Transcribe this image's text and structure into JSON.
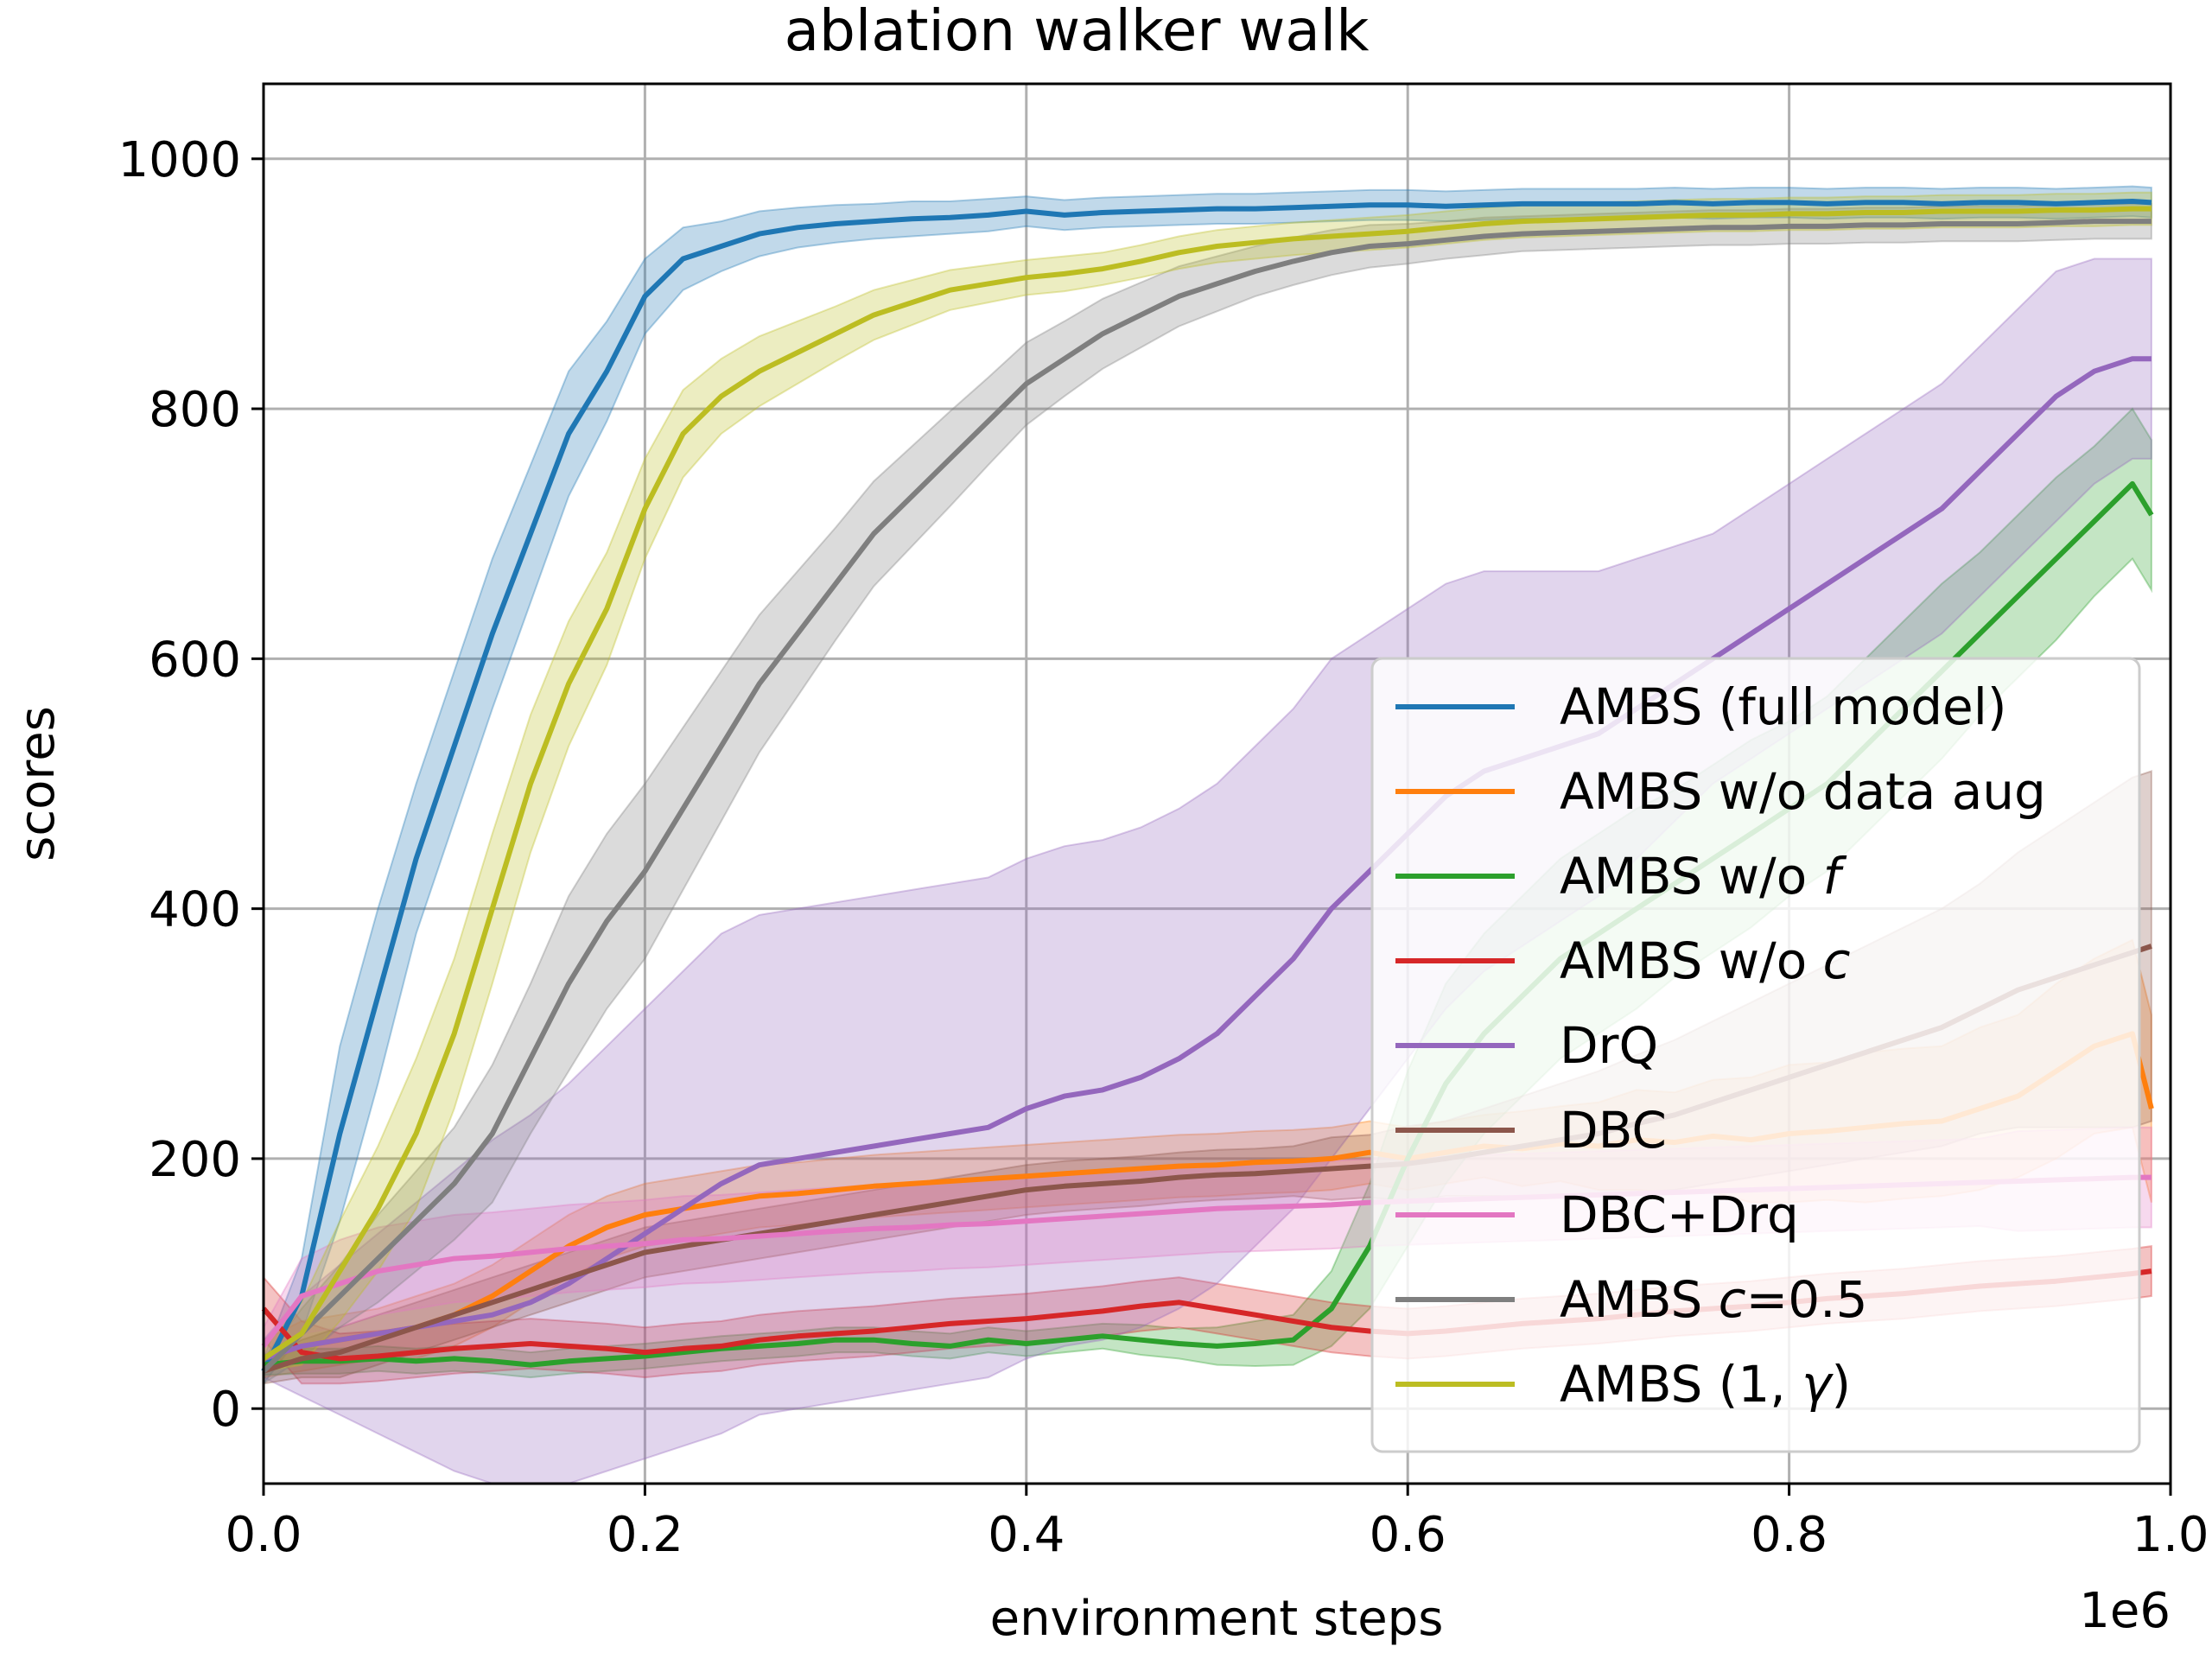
{
  "chart_data": {
    "type": "line",
    "title": "ablation walker walk",
    "xlabel": "environment steps",
    "ylabel": "scores",
    "x_offset_label": "1e6",
    "xlim": [
      0.0,
      1.0
    ],
    "ylim": [
      -60,
      1060
    ],
    "xticks": [
      0.0,
      0.2,
      0.4,
      0.6,
      0.8,
      1.0
    ],
    "xtick_labels": [
      "0.0",
      "0.2",
      "0.4",
      "0.6",
      "0.8",
      "1.0"
    ],
    "yticks": [
      0,
      200,
      400,
      600,
      800,
      1000
    ],
    "ytick_labels": [
      "0",
      "200",
      "400",
      "600",
      "800",
      "1000"
    ],
    "grid": true,
    "legend_position": "lower-right",
    "x": [
      0.0,
      0.02,
      0.04,
      0.06,
      0.08,
      0.1,
      0.12,
      0.14,
      0.16,
      0.18,
      0.2,
      0.22,
      0.24,
      0.26,
      0.28,
      0.3,
      0.32,
      0.34,
      0.36,
      0.38,
      0.4,
      0.42,
      0.44,
      0.46,
      0.48,
      0.5,
      0.52,
      0.54,
      0.56,
      0.58,
      0.6,
      0.62,
      0.64,
      0.66,
      0.68,
      0.7,
      0.72,
      0.74,
      0.76,
      0.78,
      0.8,
      0.82,
      0.84,
      0.86,
      0.88,
      0.9,
      0.92,
      0.94,
      0.96,
      0.98,
      0.99
    ],
    "series": [
      {
        "name": "AMBS (full model)",
        "label_parts": [
          {
            "text": "AMBS (full model)",
            "italic": false
          }
        ],
        "color": "#1f77b4",
        "values": [
          30,
          90,
          220,
          330,
          440,
          530,
          620,
          700,
          780,
          830,
          890,
          920,
          930,
          940,
          945,
          948,
          950,
          952,
          953,
          955,
          958,
          955,
          957,
          958,
          959,
          960,
          960,
          961,
          962,
          963,
          963,
          962,
          963,
          964,
          964,
          964,
          964,
          965,
          964,
          965,
          965,
          964,
          965,
          965,
          964,
          965,
          965,
          964,
          965,
          966,
          965
        ],
        "spread": [
          10,
          30,
          70,
          70,
          60,
          60,
          60,
          55,
          50,
          40,
          30,
          25,
          20,
          18,
          16,
          15,
          14,
          14,
          13,
          13,
          12,
          12,
          12,
          12,
          12,
          12,
          12,
          12,
          12,
          12,
          12,
          12,
          12,
          12,
          12,
          12,
          12,
          12,
          12,
          12,
          12,
          12,
          12,
          12,
          12,
          12,
          12,
          12,
          12,
          12,
          12
        ]
      },
      {
        "name": "AMBS w/o data aug",
        "label_parts": [
          {
            "text": "AMBS w/o data aug",
            "italic": false
          }
        ],
        "color": "#ff7f0e",
        "values": [
          40,
          50,
          55,
          60,
          65,
          75,
          90,
          110,
          130,
          145,
          155,
          160,
          165,
          170,
          172,
          175,
          178,
          180,
          182,
          184,
          186,
          188,
          190,
          192,
          194,
          195,
          197,
          198,
          200,
          205,
          200,
          205,
          210,
          208,
          212,
          210,
          215,
          213,
          218,
          215,
          220,
          222,
          225,
          228,
          230,
          240,
          250,
          270,
          290,
          300,
          240
        ],
        "spread": [
          15,
          20,
          20,
          20,
          25,
          25,
          25,
          25,
          25,
          25,
          25,
          25,
          25,
          25,
          25,
          25,
          25,
          25,
          25,
          25,
          25,
          25,
          25,
          25,
          25,
          25,
          25,
          25,
          25,
          25,
          25,
          25,
          25,
          30,
          30,
          35,
          40,
          40,
          45,
          50,
          55,
          55,
          60,
          60,
          60,
          65,
          65,
          70,
          70,
          75,
          75
        ]
      },
      {
        "name": "AMBS w/o f",
        "label_parts": [
          {
            "text": "AMBS w/o ",
            "italic": false
          },
          {
            "text": "f",
            "italic": true
          }
        ],
        "color": "#2ca02c",
        "values": [
          35,
          38,
          38,
          40,
          38,
          40,
          38,
          35,
          38,
          40,
          42,
          45,
          48,
          50,
          52,
          55,
          55,
          52,
          50,
          55,
          52,
          55,
          58,
          55,
          52,
          50,
          52,
          55,
          80,
          130,
          200,
          260,
          300,
          330,
          360,
          380,
          400,
          420,
          440,
          460,
          480,
          500,
          530,
          560,
          590,
          620,
          650,
          680,
          710,
          740,
          715
        ],
        "spread": [
          8,
          10,
          10,
          10,
          10,
          10,
          10,
          10,
          10,
          10,
          10,
          10,
          10,
          10,
          10,
          10,
          10,
          10,
          10,
          10,
          10,
          10,
          10,
          12,
          12,
          15,
          18,
          20,
          30,
          50,
          70,
          80,
          80,
          80,
          80,
          80,
          80,
          75,
          75,
          75,
          70,
          70,
          70,
          70,
          70,
          65,
          65,
          65,
          60,
          60,
          60
        ]
      },
      {
        "name": "AMBS w/o c",
        "label_parts": [
          {
            "text": "AMBS w/o ",
            "italic": false
          },
          {
            "text": "c",
            "italic": true
          }
        ],
        "color": "#d62728",
        "values": [
          80,
          45,
          40,
          42,
          45,
          48,
          50,
          52,
          50,
          48,
          45,
          48,
          50,
          55,
          58,
          60,
          62,
          65,
          68,
          70,
          72,
          75,
          78,
          82,
          85,
          80,
          75,
          70,
          65,
          62,
          60,
          62,
          65,
          68,
          70,
          72,
          75,
          78,
          80,
          82,
          85,
          88,
          90,
          92,
          95,
          98,
          100,
          102,
          105,
          108,
          110
        ],
        "spread": [
          25,
          25,
          20,
          20,
          20,
          20,
          20,
          20,
          20,
          20,
          20,
          20,
          20,
          20,
          20,
          20,
          20,
          20,
          20,
          20,
          20,
          20,
          20,
          20,
          20,
          20,
          20,
          20,
          20,
          20,
          20,
          20,
          20,
          20,
          20,
          20,
          20,
          20,
          20,
          20,
          20,
          20,
          20,
          20,
          20,
          20,
          20,
          20,
          20,
          20,
          20
        ]
      },
      {
        "name": "DrQ",
        "label_parts": [
          {
            "text": "DrQ",
            "italic": false
          }
        ],
        "color": "#9467bd",
        "values": [
          40,
          50,
          55,
          60,
          65,
          70,
          75,
          85,
          100,
          120,
          140,
          160,
          180,
          195,
          200,
          205,
          210,
          215,
          220,
          225,
          240,
          250,
          255,
          265,
          280,
          300,
          330,
          360,
          400,
          430,
          460,
          490,
          510,
          520,
          530,
          540,
          560,
          580,
          600,
          620,
          640,
          660,
          680,
          700,
          720,
          750,
          780,
          810,
          830,
          840,
          840
        ],
        "spread": [
          15,
          40,
          60,
          80,
          100,
          120,
          140,
          150,
          160,
          170,
          180,
          190,
          200,
          200,
          200,
          200,
          200,
          200,
          200,
          200,
          200,
          200,
          200,
          200,
          200,
          200,
          200,
          200,
          200,
          190,
          180,
          170,
          160,
          150,
          140,
          130,
          120,
          110,
          100,
          100,
          100,
          100,
          100,
          100,
          100,
          100,
          100,
          100,
          90,
          80,
          80
        ]
      },
      {
        "name": "DBC",
        "label_parts": [
          {
            "text": "DBC",
            "italic": false
          }
        ],
        "color": "#8c564b",
        "values": [
          30,
          40,
          45,
          55,
          65,
          75,
          85,
          95,
          105,
          115,
          125,
          130,
          135,
          140,
          145,
          150,
          155,
          160,
          165,
          170,
          175,
          178,
          180,
          182,
          185,
          187,
          188,
          190,
          192,
          194,
          196,
          200,
          205,
          210,
          215,
          220,
          228,
          235,
          245,
          255,
          265,
          275,
          285,
          295,
          305,
          320,
          335,
          345,
          355,
          365,
          370
        ],
        "spread": [
          10,
          15,
          20,
          20,
          20,
          20,
          20,
          20,
          20,
          20,
          20,
          20,
          20,
          20,
          20,
          20,
          20,
          20,
          20,
          20,
          20,
          20,
          20,
          20,
          20,
          20,
          20,
          20,
          25,
          25,
          30,
          30,
          35,
          40,
          45,
          50,
          55,
          60,
          65,
          70,
          75,
          80,
          85,
          90,
          95,
          100,
          110,
          120,
          130,
          140,
          140
        ]
      },
      {
        "name": "DBC+Drq",
        "label_parts": [
          {
            "text": "DBC+Drq",
            "italic": false
          }
        ],
        "color": "#e377c2",
        "values": [
          50,
          90,
          100,
          110,
          115,
          120,
          122,
          125,
          128,
          130,
          132,
          135,
          136,
          138,
          140,
          142,
          144,
          145,
          147,
          148,
          150,
          152,
          154,
          156,
          158,
          160,
          161,
          162,
          163,
          165,
          166,
          167,
          168,
          169,
          170,
          171,
          172,
          173,
          174,
          175,
          176,
          177,
          178,
          179,
          180,
          181,
          182,
          183,
          184,
          185,
          185
        ],
        "spread": [
          15,
          30,
          35,
          35,
          35,
          35,
          35,
          35,
          35,
          35,
          35,
          35,
          35,
          35,
          35,
          35,
          35,
          35,
          35,
          35,
          35,
          35,
          35,
          35,
          35,
          35,
          35,
          35,
          35,
          35,
          35,
          35,
          35,
          35,
          35,
          35,
          35,
          35,
          35,
          35,
          35,
          35,
          35,
          35,
          35,
          35,
          40,
          40,
          40,
          40,
          40
        ]
      },
      {
        "name": "AMBS c=0.5",
        "label_parts": [
          {
            "text": "AMBS ",
            "italic": false
          },
          {
            "text": "c",
            "italic": true
          },
          {
            "text": "=0.5",
            "italic": false
          }
        ],
        "color": "#7f7f7f",
        "values": [
          30,
          60,
          90,
          120,
          150,
          180,
          220,
          280,
          340,
          390,
          430,
          480,
          530,
          580,
          620,
          660,
          700,
          730,
          760,
          790,
          820,
          840,
          860,
          875,
          890,
          900,
          910,
          918,
          925,
          930,
          932,
          935,
          938,
          940,
          941,
          942,
          943,
          944,
          945,
          945,
          946,
          946,
          947,
          947,
          948,
          948,
          948,
          949,
          950,
          950,
          950
        ],
        "spread": [
          10,
          20,
          25,
          35,
          40,
          45,
          55,
          60,
          70,
          70,
          70,
          65,
          60,
          55,
          50,
          45,
          42,
          40,
          38,
          35,
          33,
          30,
          28,
          26,
          24,
          22,
          20,
          19,
          18,
          17,
          16,
          15,
          15,
          14,
          14,
          14,
          14,
          14,
          14,
          14,
          14,
          14,
          14,
          14,
          14,
          14,
          14,
          14,
          14,
          14,
          14
        ]
      },
      {
        "name": "AMBS (1, γ)",
        "label_parts": [
          {
            "text": "AMBS (1, ",
            "italic": false
          },
          {
            "text": "γ",
            "italic": true
          },
          {
            "text": ")",
            "italic": false
          }
        ],
        "color": "#bcbd22",
        "values": [
          40,
          60,
          110,
          160,
          220,
          300,
          400,
          500,
          580,
          640,
          720,
          780,
          810,
          830,
          845,
          860,
          875,
          885,
          895,
          900,
          905,
          908,
          912,
          918,
          925,
          930,
          933,
          936,
          938,
          940,
          942,
          945,
          948,
          950,
          951,
          952,
          953,
          954,
          955,
          955,
          956,
          956,
          957,
          957,
          958,
          958,
          958,
          959,
          959,
          960,
          960
        ],
        "spread": [
          10,
          25,
          40,
          50,
          60,
          60,
          60,
          55,
          50,
          45,
          40,
          35,
          30,
          28,
          25,
          22,
          20,
          18,
          16,
          15,
          14,
          14,
          13,
          13,
          13,
          13,
          13,
          13,
          13,
          13,
          13,
          13,
          13,
          13,
          13,
          13,
          13,
          13,
          13,
          13,
          13,
          13,
          13,
          13,
          13,
          13,
          13,
          13,
          13,
          13,
          13
        ]
      }
    ]
  }
}
